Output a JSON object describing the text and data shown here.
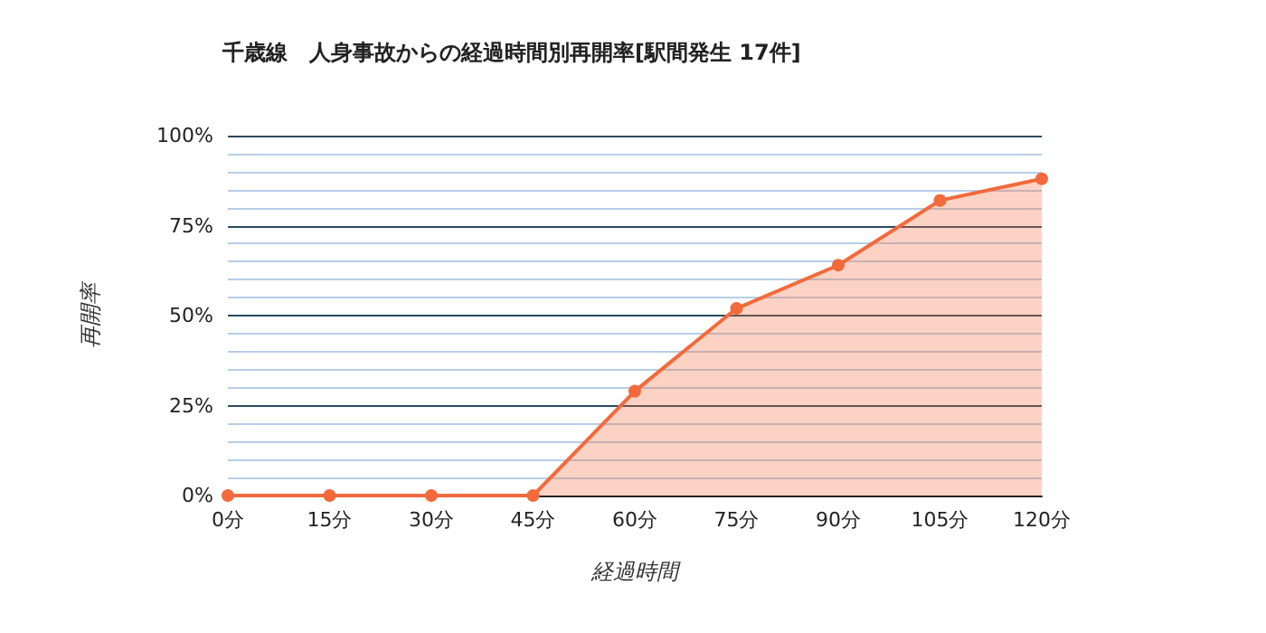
{
  "chart_data": {
    "type": "area",
    "title": "千歳線　人身事故からの経過時間別再開率[駅間発生 17件]",
    "xlabel": "経過時間",
    "ylabel": "再開率",
    "categories": [
      "0分",
      "15分",
      "30分",
      "45分",
      "60分",
      "75分",
      "90分",
      "105分",
      "120分"
    ],
    "series": [
      {
        "color": "#f26a3c",
        "values": [
          0,
          0,
          0,
          0,
          29,
          52,
          64,
          82,
          88
        ]
      }
    ],
    "ylim": [
      0,
      100
    ],
    "yticks": [
      {
        "value": 0,
        "label": "0%"
      },
      {
        "value": 5,
        "label": null
      },
      {
        "value": 10,
        "label": null
      },
      {
        "value": 15,
        "label": null
      },
      {
        "value": 20,
        "label": null
      },
      {
        "value": 25,
        "label": "25%"
      },
      {
        "value": 30,
        "label": null
      },
      {
        "value": 35,
        "label": null
      },
      {
        "value": 40,
        "label": null
      },
      {
        "value": 45,
        "label": null
      },
      {
        "value": 50,
        "label": "50%"
      },
      {
        "value": 55,
        "label": null
      },
      {
        "value": 60,
        "label": null
      },
      {
        "value": 65,
        "label": null
      },
      {
        "value": 70,
        "label": null
      },
      {
        "value": 75,
        "label": "75%"
      },
      {
        "value": 80,
        "label": null
      },
      {
        "value": 85,
        "label": null
      },
      {
        "value": 90,
        "label": null
      },
      {
        "value": 95,
        "label": null
      },
      {
        "value": 100,
        "label": "100%"
      }
    ],
    "grid": true,
    "marker": "circle"
  }
}
